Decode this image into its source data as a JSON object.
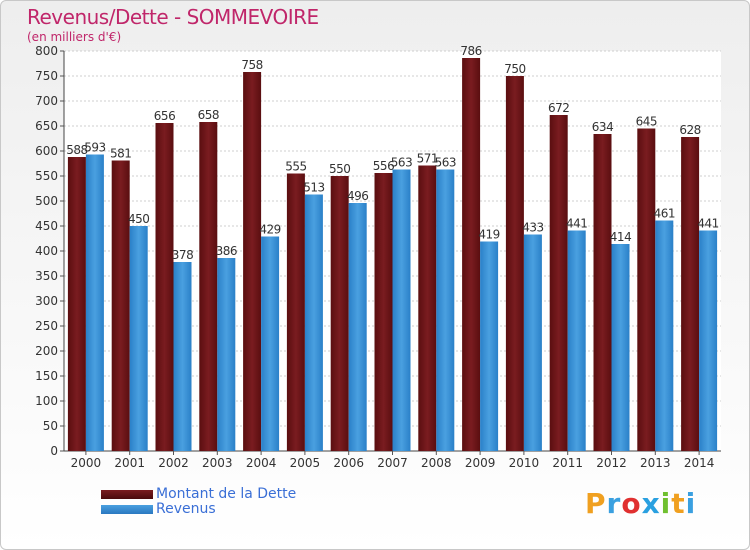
{
  "header": {
    "title": "Revenus/Dette - SOMMEVOIRE",
    "subtitle": "(en milliers d'€)"
  },
  "logo": "Proxiti",
  "colors": {
    "dette": "#7a1c20",
    "revenus": "#4aa0e0",
    "title": "#c0266a",
    "legend_text": "#3a6fd6"
  },
  "chart_data": {
    "type": "bar",
    "categories": [
      "2000",
      "2001",
      "2002",
      "2003",
      "2004",
      "2005",
      "2006",
      "2007",
      "2008",
      "2009",
      "2010",
      "2011",
      "2012",
      "2013",
      "2014"
    ],
    "series": [
      {
        "name": "Montant de la Dette",
        "values": [
          588,
          581,
          656,
          658,
          758,
          555,
          550,
          556,
          571,
          786,
          750,
          672,
          634,
          645,
          628
        ]
      },
      {
        "name": "Revenus",
        "values": [
          593,
          450,
          378,
          386,
          429,
          513,
          496,
          563,
          563,
          419,
          433,
          441,
          414,
          461,
          441
        ]
      }
    ],
    "title": "Revenus/Dette - SOMMEVOIRE",
    "ylabel": "(en milliers d'€)",
    "ylim": [
      0,
      800
    ],
    "yticks": [
      0,
      50,
      100,
      150,
      200,
      250,
      300,
      350,
      400,
      450,
      500,
      550,
      600,
      650,
      700,
      750,
      800
    ],
    "grid": true,
    "legend": "bottom-left"
  }
}
